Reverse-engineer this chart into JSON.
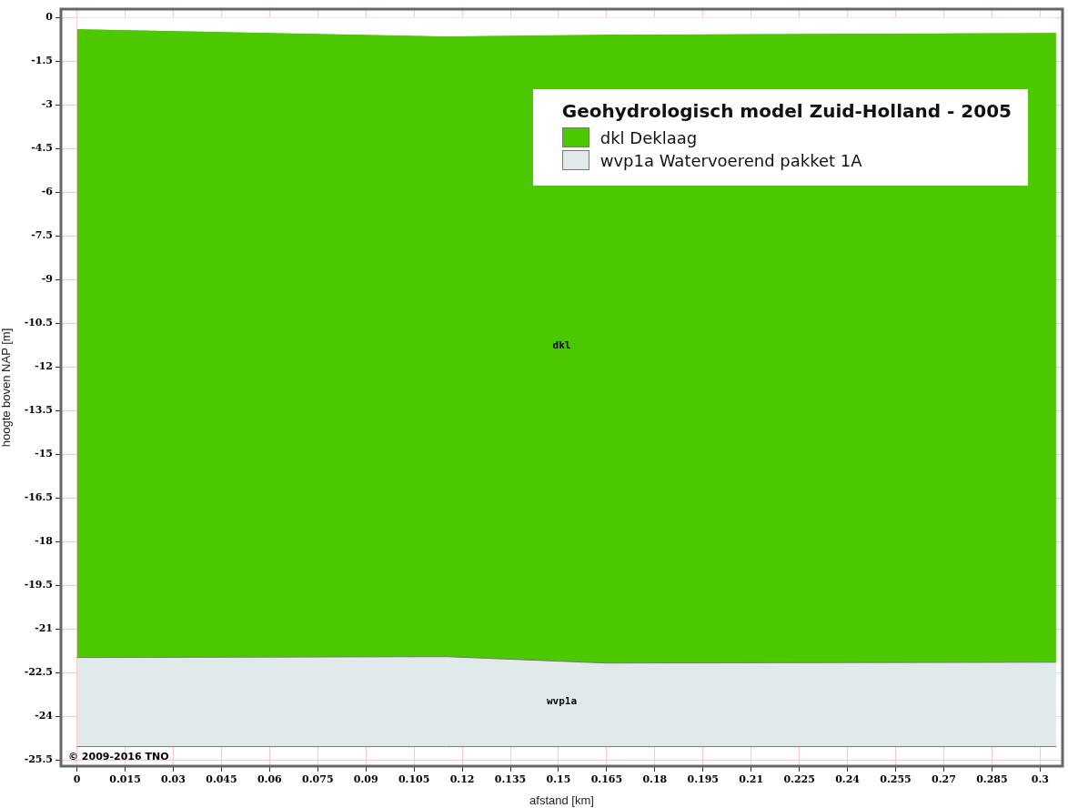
{
  "chart_data": {
    "type": "area",
    "xlabel": "afstand [km]",
    "ylabel": "hoogte boven NAP [m]",
    "legend_title": "Geohydrologisch model Zuid-Holland - 2005",
    "x": [
      0,
      0.115,
      0.165,
      0.305
    ],
    "series": [
      {
        "color": "#ffffff",
        "values": [
          -0.37,
          -0.62,
          -0.56,
          -0.5
        ]
      },
      {
        "name": "dkl Deklaag",
        "color": "#4cc800",
        "values": [
          -21.6,
          -21.32,
          -21.6,
          -21.63
        ]
      },
      {
        "name": "wvp1a Watervoerend pakket 1A",
        "color": "#e1eaeb",
        "values": [
          -3.06,
          -3.09,
          -2.87,
          -2.9
        ]
      }
    ],
    "stacked": true,
    "xlim": [
      -0.005,
      0.307
    ],
    "xticks": [
      0,
      0.015,
      0.03,
      0.045,
      0.06,
      0.075,
      0.09,
      0.105,
      0.12,
      0.135,
      0.15,
      0.165,
      0.18,
      0.195,
      0.21,
      0.225,
      0.24,
      0.255,
      0.27,
      0.285,
      0.3
    ],
    "ylim": [
      -25.7,
      0.3
    ],
    "yticks": [
      0,
      -1.5,
      -3,
      -4.5,
      -6,
      -7.5,
      -9,
      -10.5,
      -12,
      -13.5,
      -15,
      -16.5,
      -18,
      -19.5,
      -21,
      -22.5,
      -24,
      -25.5
    ],
    "grid": true,
    "legend": "top right",
    "annotations": [
      "dkl",
      "wvp1a",
      "© 2009-2016 TNO"
    ]
  }
}
